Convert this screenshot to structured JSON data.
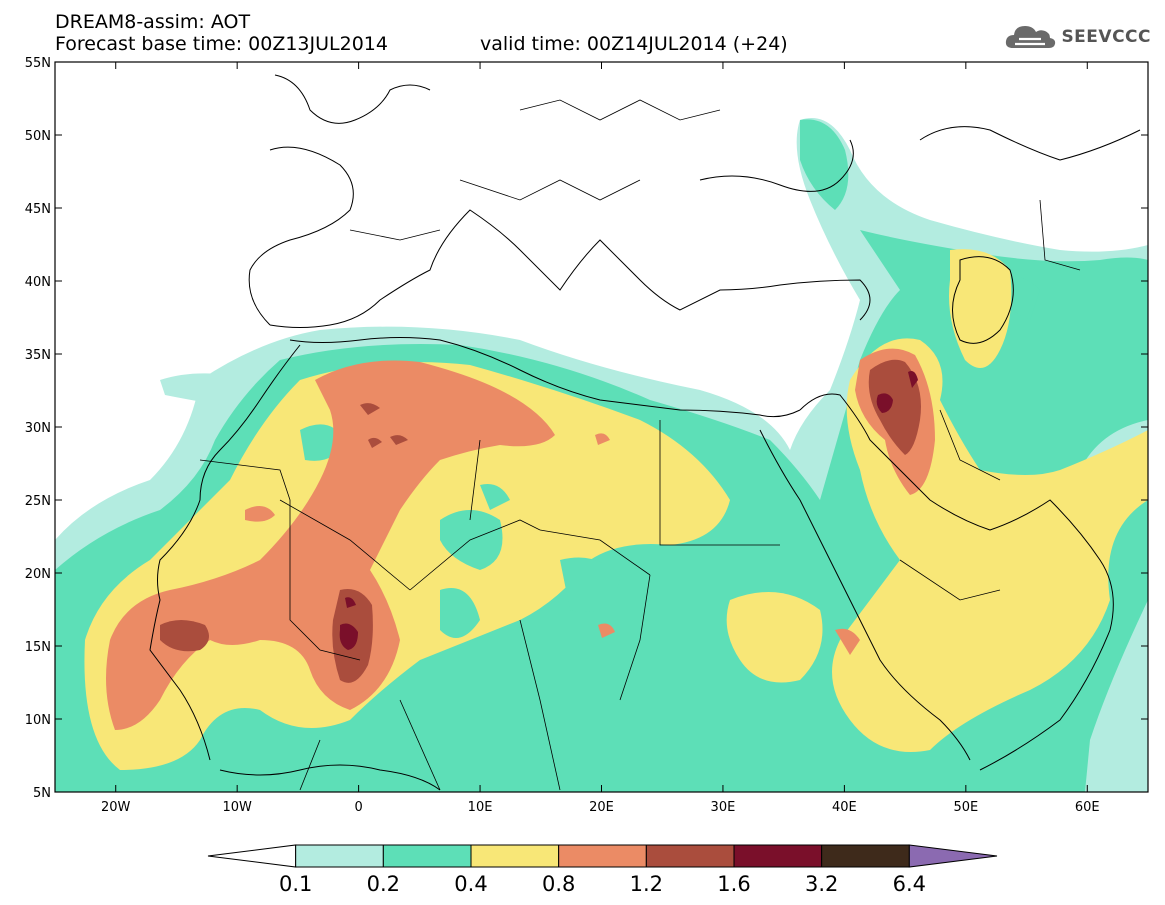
{
  "header": {
    "title": "DREAM8-assim: AOT",
    "base_time": "Forecast base time: 00Z13JUL2014",
    "valid_time": "valid time: 00Z14JUL2014 (+24)"
  },
  "logo": {
    "text": "SEEVCCC",
    "icon": "cloud-icon"
  },
  "axes": {
    "lat_labels": [
      "55N",
      "50N",
      "45N",
      "40N",
      "35N",
      "30N",
      "25N",
      "20N",
      "15N",
      "10N",
      "5N"
    ],
    "lon_labels": [
      "20W",
      "10W",
      "0",
      "10E",
      "20E",
      "30E",
      "40E",
      "50E",
      "60E"
    ],
    "lon_range": [
      -25,
      65
    ],
    "lat_range": [
      5,
      55
    ]
  },
  "colorbar": {
    "labels": [
      "0.1",
      "0.2",
      "0.4",
      "0.8",
      "1.2",
      "1.6",
      "3.2",
      "6.4"
    ],
    "colors": [
      "#ffffff",
      "#b3ece0",
      "#5ddfb7",
      "#f8e777",
      "#eb8b65",
      "#aa4d3d",
      "#7a0f2a",
      "#3e2a1b",
      "#8b6ab1"
    ]
  },
  "map_colors": {
    "ocean": "#ffffff",
    "light_teal": "#b3ece0",
    "teal": "#5ddfb7",
    "yellow": "#f8e777",
    "orange": "#eb8b65",
    "brown": "#aa4d3d",
    "maroon": "#7a0f2a"
  }
}
